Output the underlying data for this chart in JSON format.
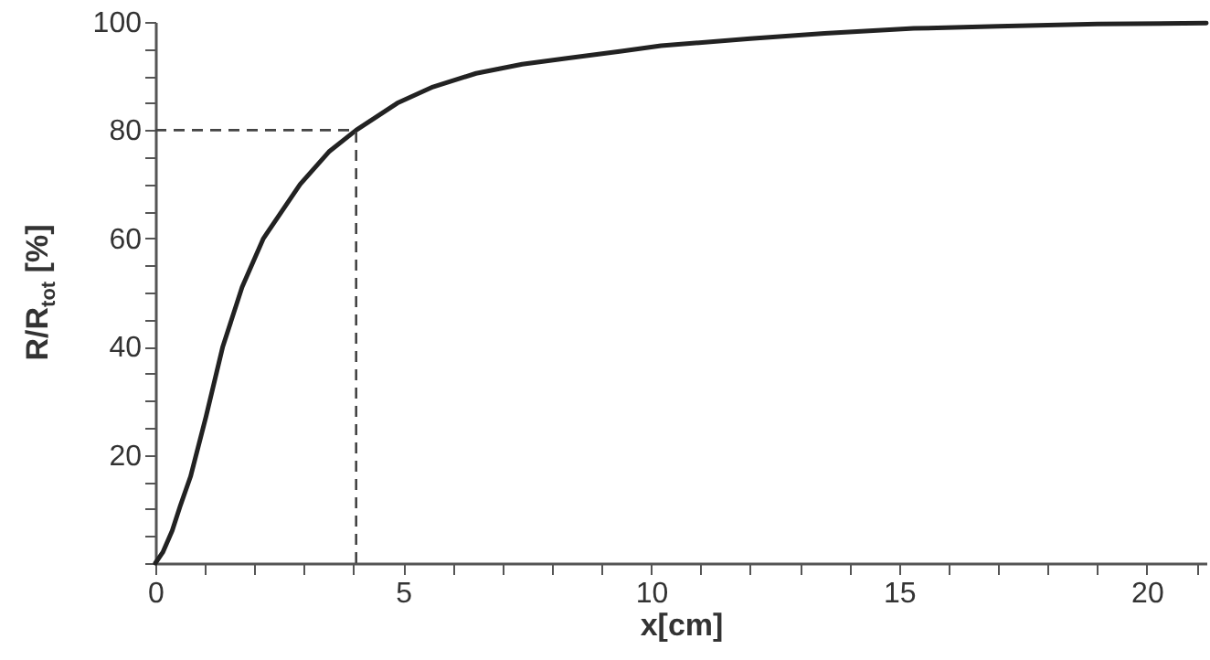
{
  "chart_data": {
    "type": "line",
    "xlabel": "x[cm]",
    "ylabel": "R/R$_{tot}$ [%]",
    "xlim": [
      0,
      21.2
    ],
    "ylim": [
      0,
      100
    ],
    "xticks": [
      0,
      {
        "value": 1,
        "label": null
      },
      {
        "value": 2,
        "label": null
      },
      {
        "value": 3,
        "label": null
      },
      {
        "value": 4,
        "label": null
      },
      5,
      {
        "value": 6,
        "label": null
      },
      {
        "value": 7,
        "label": null
      },
      {
        "value": 8,
        "label": null
      },
      {
        "value": 9,
        "label": null
      },
      10,
      {
        "value": 11,
        "label": null
      },
      {
        "value": 12,
        "label": null
      },
      {
        "value": 13,
        "label": null
      },
      {
        "value": 14,
        "label": null
      },
      15,
      {
        "value": 16,
        "label": null
      },
      {
        "value": 17,
        "label": null
      },
      {
        "value": 18,
        "label": null
      },
      {
        "value": 19,
        "label": null
      },
      20,
      {
        "value": 21,
        "label": null
      }
    ],
    "yticks": [
      {
        "value": 0,
        "label": null
      },
      {
        "value": 5,
        "label": null
      },
      {
        "value": 10,
        "label": null
      },
      {
        "value": 15,
        "label": null
      },
      20,
      {
        "value": 25,
        "label": null
      },
      {
        "value": 30,
        "label": null
      },
      {
        "value": 35,
        "label": null
      },
      40,
      {
        "value": 45,
        "label": null
      },
      {
        "value": 50,
        "label": null
      },
      {
        "value": 55,
        "label": null
      },
      60,
      {
        "value": 65,
        "label": null
      },
      {
        "value": 70,
        "label": null
      },
      {
        "value": 75,
        "label": null
      },
      80,
      {
        "value": 85,
        "label": null
      },
      {
        "value": 90,
        "label": null
      },
      {
        "value": 95,
        "label": null
      },
      100
    ],
    "grid": false,
    "marker": "none",
    "line_style": "solid",
    "x": [
      0,
      0.15,
      0.34,
      0.5,
      0.71,
      1.02,
      1.36,
      1.75,
      2.18,
      2.92,
      3.5,
      4.05,
      4.88,
      5.6,
      6.47,
      7.4,
      8.3,
      9.4,
      10.2,
      12,
      13.5,
      15.3,
      17,
      19,
      21.2
    ],
    "series": [
      {
        "color": "#222222",
        "values": [
          0,
          2,
          6,
          10.5,
          16,
          27,
          40,
          51,
          60,
          70,
          76,
          80,
          85,
          88,
          90.5,
          92.2,
          93.3,
          94.6,
          95.6,
          96.9,
          97.9,
          98.8,
          99.2,
          99.6,
          99.8
        ]
      }
    ],
    "ref_lines": [
      {
        "axis": "x",
        "value": 4.05,
        "color": "#444444",
        "line_style": "dashed"
      },
      {
        "axis": "y",
        "value": 80,
        "color": "#444444",
        "line_style": "dashed"
      }
    ]
  }
}
